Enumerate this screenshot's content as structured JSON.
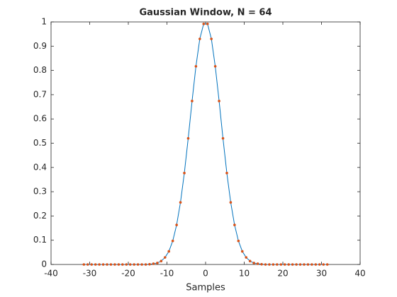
{
  "chart_data": {
    "type": "line",
    "title": "Gaussian Window, N = 64",
    "x_label": "Samples",
    "x": [
      -31.5,
      -30.5,
      -29.5,
      -28.5,
      -27.5,
      -26.5,
      -25.5,
      -24.5,
      -23.5,
      -22.5,
      -21.5,
      -20.5,
      -19.5,
      -18.5,
      -17.5,
      -16.5,
      -15.5,
      -14.5,
      -13.5,
      -12.5,
      -11.5,
      -10.5,
      -9.5,
      -8.5,
      -7.5,
      -6.5,
      -5.5,
      -4.5,
      -3.5,
      -2.5,
      -1.5,
      -0.5,
      0.5,
      1.5,
      2.5,
      3.5,
      4.5,
      5.5,
      6.5,
      7.5,
      8.5,
      9.5,
      10.5,
      11.5,
      12.5,
      13.5,
      14.5,
      15.5,
      16.5,
      17.5,
      18.5,
      19.5,
      20.5,
      21.5,
      22.5,
      23.5,
      24.5,
      25.5,
      26.5,
      27.5,
      28.5,
      29.5,
      30.5,
      31.5
    ],
    "series": [
      {
        "color": "#0072bd",
        "marker_color": "#d95319",
        "values": [
          0,
          0,
          0,
          0,
          0,
          0,
          0,
          0,
          0,
          0,
          0,
          0,
          0,
          0,
          0,
          0,
          0,
          0.001,
          0.003,
          0.006,
          0.014,
          0.029,
          0.054,
          0.097,
          0.163,
          0.256,
          0.377,
          0.52,
          0.674,
          0.817,
          0.93,
          0.992,
          0.992,
          0.93,
          0.817,
          0.674,
          0.52,
          0.377,
          0.256,
          0.163,
          0.097,
          0.054,
          0.029,
          0.014,
          0.006,
          0.003,
          0.001,
          0,
          0,
          0,
          0,
          0,
          0,
          0,
          0,
          0,
          0,
          0,
          0,
          0,
          0,
          0,
          0,
          0
        ]
      }
    ],
    "xlim": [
      -40,
      40
    ],
    "xticks": [
      -40,
      -30,
      -20,
      -10,
      0,
      10,
      20,
      30,
      40
    ],
    "ylim": [
      0,
      1
    ],
    "yticks": [
      0,
      0.1,
      0.2,
      0.3,
      0.4,
      0.5,
      0.6,
      0.7,
      0.8,
      0.9,
      1
    ],
    "grid": false
  }
}
